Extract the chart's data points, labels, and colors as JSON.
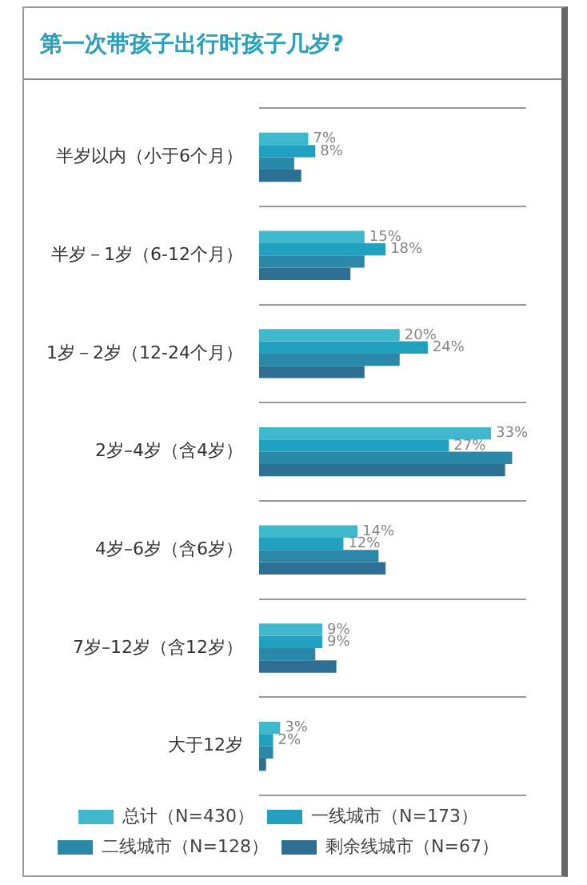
{
  "chart_data": {
    "type": "bar",
    "orientation": "horizontal",
    "title": "第一次带孩子出行时孩子几岁?",
    "categories": [
      "半岁以内（小于6个月）",
      "半岁－1岁（6-12个月）",
      "1岁－2岁（12-24个月）",
      "2岁–4岁（含4岁）",
      "4岁–6岁（含6岁）",
      "7岁–12岁（含12岁）",
      "大于12岁"
    ],
    "series": [
      {
        "name": "总计（N=430）",
        "color": "#3fb8cc",
        "values": [
          7,
          15,
          20,
          33,
          14,
          9,
          3
        ],
        "value_labels": [
          "7%",
          "15%",
          "20%",
          "33%",
          "14%",
          "9%",
          "3%"
        ]
      },
      {
        "name": "一线城市（N=173）",
        "color": "#22a0c0",
        "values": [
          8,
          18,
          24,
          27,
          12,
          9,
          2
        ],
        "value_labels": [
          "8%",
          "18%",
          "24%",
          "27%",
          "12%",
          "9%",
          "2%"
        ]
      },
      {
        "name": "二线城市（N=128）",
        "color": "#2a88a8",
        "values": [
          5,
          15,
          20,
          36,
          17,
          8,
          2
        ]
      },
      {
        "name": "剩余线城市（N=67）",
        "color": "#2e6f94",
        "values": [
          6,
          13,
          15,
          35,
          18,
          11,
          1
        ]
      }
    ],
    "xlim": [
      0,
      38
    ],
    "grid": "y",
    "legend": "bottom",
    "tick_labels": "y"
  }
}
